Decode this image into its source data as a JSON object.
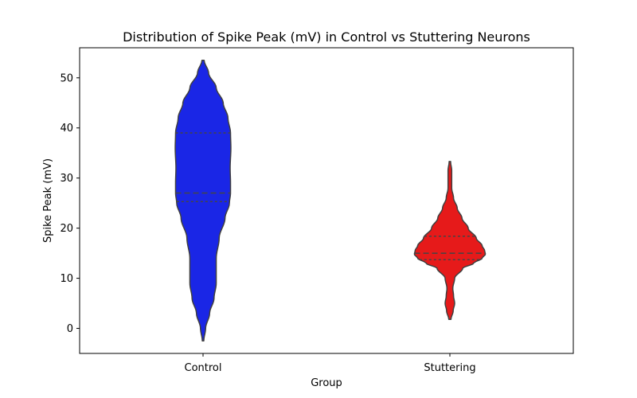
{
  "chart_data": {
    "type": "violin",
    "title": "Distribution of Spike Peak (mV) in Control vs Stuttering Neurons",
    "xlabel": "Group",
    "ylabel": "Spike Peak (mV)",
    "categories": [
      "Control",
      "Stuttering"
    ],
    "ylim": [
      -5,
      56
    ],
    "yticks": [
      "0",
      "10",
      "20",
      "30",
      "40",
      "50"
    ],
    "grid": false,
    "series": [
      {
        "category": "Control",
        "color": "#1a26e6",
        "range": [
          -2.5,
          53.5
        ],
        "quartiles": {
          "q1": 25.3,
          "median": 27.0,
          "q3": 39.0
        },
        "density_profile": [
          [
            -2.5,
            0.02
          ],
          [
            0,
            0.07
          ],
          [
            3,
            0.18
          ],
          [
            6,
            0.3
          ],
          [
            9,
            0.36
          ],
          [
            11,
            0.36
          ],
          [
            14,
            0.36
          ],
          [
            18,
            0.44
          ],
          [
            22,
            0.6
          ],
          [
            25,
            0.72
          ],
          [
            27,
            0.75
          ],
          [
            29,
            0.75
          ],
          [
            32,
            0.74
          ],
          [
            36,
            0.76
          ],
          [
            39,
            0.75
          ],
          [
            42,
            0.68
          ],
          [
            45,
            0.55
          ],
          [
            48,
            0.36
          ],
          [
            51,
            0.15
          ],
          [
            53.5,
            0.03
          ]
        ]
      },
      {
        "category": "Stuttering",
        "color": "#e61a1a",
        "range": [
          1.8,
          33.3
        ],
        "quartiles": {
          "q1": 13.7,
          "median": 15.0,
          "q3": 18.4
        },
        "density_profile": [
          [
            1.8,
            0.03
          ],
          [
            3.5,
            0.09
          ],
          [
            5,
            0.13
          ],
          [
            6.5,
            0.1
          ],
          [
            8,
            0.08
          ],
          [
            10,
            0.13
          ],
          [
            12,
            0.35
          ],
          [
            13,
            0.65
          ],
          [
            14,
            0.88
          ],
          [
            14.8,
            0.97
          ],
          [
            15.5,
            0.95
          ],
          [
            16.5,
            0.88
          ],
          [
            18,
            0.72
          ],
          [
            20,
            0.5
          ],
          [
            22,
            0.33
          ],
          [
            24,
            0.2
          ],
          [
            26,
            0.1
          ],
          [
            28,
            0.05
          ],
          [
            30,
            0.05
          ],
          [
            31.5,
            0.05
          ],
          [
            33.3,
            0.02
          ]
        ]
      }
    ]
  }
}
